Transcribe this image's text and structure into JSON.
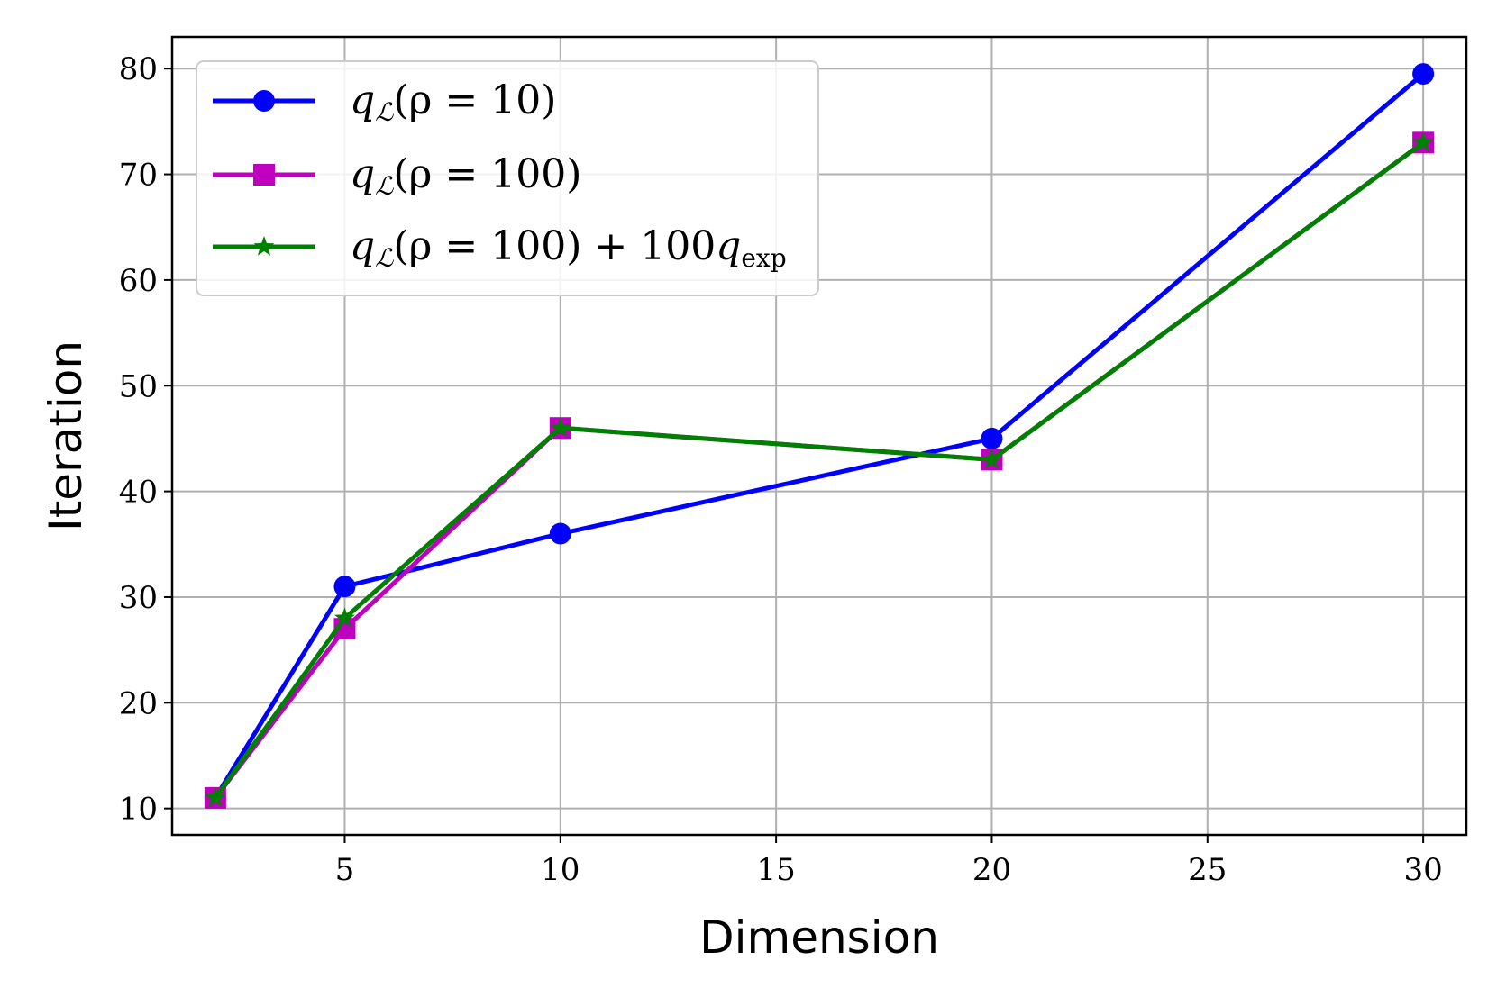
{
  "chart_data": {
    "type": "line",
    "xlabel": "Dimension",
    "ylabel": "Iteration",
    "x": [
      2,
      5,
      10,
      20,
      30
    ],
    "xlim": [
      1.0,
      31.0
    ],
    "ylim": [
      7.5,
      83.0
    ],
    "xticks": [
      5,
      10,
      15,
      20,
      25,
      30
    ],
    "yticks": [
      10,
      20,
      30,
      40,
      50,
      60,
      70,
      80
    ],
    "grid": true,
    "legend_position": "upper-left",
    "series": [
      {
        "name": "q_L(ρ = 10)",
        "legend_parts": [
          "q",
          "ℒ",
          "(ρ = 10)",
          "",
          ""
        ],
        "color": "#0000ff",
        "marker": "circle",
        "values": [
          11,
          31,
          36,
          45,
          79.5
        ]
      },
      {
        "name": "q_L(ρ = 100)",
        "legend_parts": [
          "q",
          "ℒ",
          "(ρ = 100)",
          "",
          ""
        ],
        "color": "#bf00bf",
        "marker": "square",
        "values": [
          11,
          27,
          46,
          43,
          73
        ]
      },
      {
        "name": "q_L(ρ = 100) + 100q_exp",
        "legend_parts": [
          "q",
          "ℒ",
          "(ρ = 100) + 100",
          "q",
          "exp"
        ],
        "color": "#008000",
        "marker": "star",
        "values": [
          11,
          28,
          46,
          43,
          73
        ]
      }
    ]
  }
}
